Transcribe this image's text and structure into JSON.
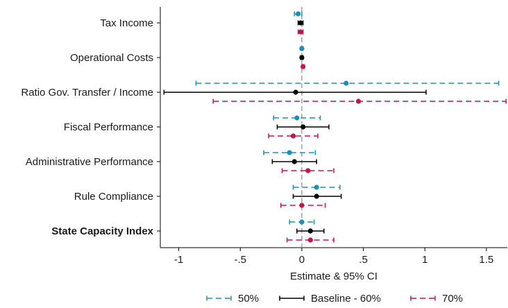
{
  "chart_data": {
    "type": "coefficient-plot",
    "title": "",
    "xlabel": "Estimate & 95% CI",
    "ylabel": "",
    "xlim": [
      -1.15,
      1.67
    ],
    "xticks": [
      -1,
      -0.5,
      0,
      0.5,
      1,
      1.5
    ],
    "xtick_labels": [
      "-1",
      "-.5",
      "0",
      ".5",
      "1",
      "1.5"
    ],
    "reference_line": 0,
    "grid": false,
    "legend_position": "bottom",
    "categories": [
      {
        "label": "Tax Income",
        "bold": false
      },
      {
        "label": "Operational Costs",
        "bold": false
      },
      {
        "label": "Ratio Gov. Transfer / Income",
        "bold": false
      },
      {
        "label": "Fiscal Performance",
        "bold": false
      },
      {
        "label": "Administrative Performance",
        "bold": false
      },
      {
        "label": "Rule Compliance",
        "bold": false
      },
      {
        "label": "State Capacity Index",
        "bold": true
      }
    ],
    "series": [
      {
        "name": "50%",
        "color": "#1b8fba",
        "dashed": true,
        "estimates": [
          -0.03,
          0.0,
          0.36,
          -0.04,
          -0.1,
          0.12,
          0.0
        ],
        "ci_low": [
          -0.06,
          -0.01,
          -0.86,
          -0.23,
          -0.31,
          -0.07,
          -0.1
        ],
        "ci_high": [
          0.0,
          0.01,
          1.6,
          0.15,
          0.11,
          0.31,
          0.1
        ]
      },
      {
        "name": "Baseline - 60%",
        "color": "#000000",
        "dashed": false,
        "estimates": [
          -0.01,
          0.0,
          -0.05,
          0.01,
          -0.06,
          0.12,
          0.07
        ],
        "ci_low": [
          -0.03,
          -0.01,
          -1.12,
          -0.2,
          -0.24,
          -0.07,
          -0.04
        ],
        "ci_high": [
          0.01,
          0.01,
          1.01,
          0.22,
          0.12,
          0.32,
          0.18
        ]
      },
      {
        "name": "70%",
        "color": "#c4144a",
        "dashed": true,
        "estimates": [
          -0.01,
          0.01,
          0.46,
          -0.07,
          0.05,
          0.0,
          0.07
        ],
        "ci_low": [
          -0.03,
          0.0,
          -0.72,
          -0.27,
          -0.16,
          -0.17,
          -0.12
        ],
        "ci_high": [
          0.01,
          0.02,
          1.66,
          0.13,
          0.26,
          0.19,
          0.26
        ]
      }
    ]
  }
}
